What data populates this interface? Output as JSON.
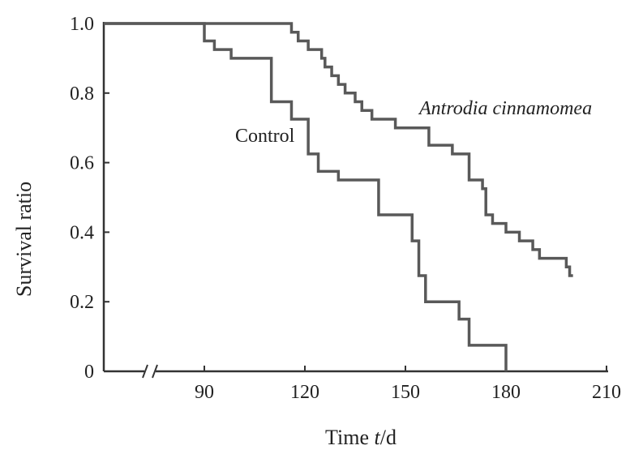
{
  "chart_data": {
    "type": "line",
    "step": true,
    "xlabel": {
      "pre": "Time ",
      "var": "t",
      "post": "/d"
    },
    "ylabel": "Survival ratio",
    "xlim": [
      60,
      210
    ],
    "ylim": [
      0,
      1.0
    ],
    "x_axis_break": true,
    "x_ticks": [
      90,
      120,
      150,
      180,
      210
    ],
    "y_ticks": [
      0,
      0.2,
      0.4,
      0.6,
      0.8,
      1.0
    ],
    "y_tick_labels": [
      "0",
      "0.2",
      "0.4",
      "0.6",
      "0.8",
      "1.0"
    ],
    "grid": false,
    "series": [
      {
        "name": "Antrodia cinnamomea",
        "italic": true,
        "x": [
          60,
          116,
          118,
          121,
          125,
          126,
          128,
          130,
          132,
          135,
          137,
          140,
          143,
          147,
          152,
          157,
          164,
          169,
          173,
          174,
          176,
          180,
          184,
          188,
          190,
          198,
          199,
          200
        ],
        "y": [
          1.0,
          0.975,
          0.95,
          0.925,
          0.9,
          0.875,
          0.85,
          0.825,
          0.8,
          0.775,
          0.75,
          0.725,
          0.725,
          0.7,
          0.7,
          0.65,
          0.625,
          0.55,
          0.525,
          0.45,
          0.425,
          0.4,
          0.375,
          0.35,
          0.325,
          0.3,
          0.275,
          0.275
        ]
      },
      {
        "name": "Control",
        "italic": false,
        "x": [
          60,
          90,
          93,
          98,
          104,
          110,
          116,
          121,
          124,
          130,
          136,
          142,
          148,
          152,
          154,
          156,
          162,
          166,
          169,
          180,
          180
        ],
        "y": [
          1.0,
          0.95,
          0.925,
          0.9,
          0.9,
          0.775,
          0.725,
          0.625,
          0.575,
          0.55,
          0.55,
          0.45,
          0.45,
          0.375,
          0.275,
          0.2,
          0.2,
          0.15,
          0.075,
          0.075,
          0.0
        ]
      }
    ]
  }
}
